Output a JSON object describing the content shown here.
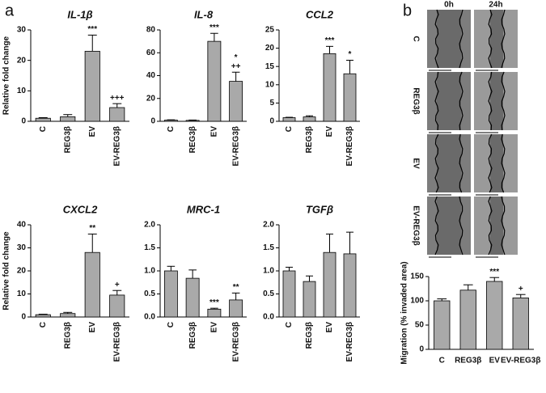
{
  "panel_labels": [
    "a",
    "b"
  ],
  "images": {
    "columns": [
      "0h",
      "24h"
    ],
    "rows": [
      "C",
      "REG3β",
      "EV",
      "EV-REG3β"
    ]
  },
  "chart_data": [
    {
      "type": "bar",
      "title": "IL-1β",
      "y_label": "Relative fold change",
      "categories": [
        "C",
        "REG3β",
        "EV",
        "EV-REG3β"
      ],
      "values": [
        1.0,
        1.5,
        23,
        4.5
      ],
      "errors": [
        0.2,
        0.7,
        5.3,
        1.3
      ],
      "annotations": [
        null,
        null,
        [
          "***"
        ],
        [
          "+++"
        ]
      ],
      "color": "#a9a9a9",
      "ylim": [
        0,
        30
      ],
      "yticks": [
        0,
        10,
        20,
        30
      ],
      "xtick_rotation": -90
    },
    {
      "type": "bar",
      "title": "IL-8",
      "categories": [
        "C",
        "REG3β",
        "EV",
        "EV-REG3β"
      ],
      "values": [
        1.0,
        0.8,
        70,
        35
      ],
      "errors": [
        0.3,
        0.3,
        7,
        8
      ],
      "annotations": [
        null,
        null,
        [
          "***"
        ],
        [
          "*",
          "++"
        ]
      ],
      "color": "#a9a9a9",
      "ylim": [
        0,
        80
      ],
      "yticks": [
        0,
        20,
        40,
        60,
        80
      ],
      "xtick_rotation": -90
    },
    {
      "type": "bar",
      "title": "CCL2",
      "categories": [
        "C",
        "REG3β",
        "EV",
        "EV-REG3β"
      ],
      "values": [
        1.0,
        1.2,
        18.5,
        13
      ],
      "errors": [
        0.1,
        0.3,
        2,
        3.7
      ],
      "annotations": [
        null,
        null,
        [
          "***"
        ],
        [
          "*"
        ]
      ],
      "color": "#a9a9a9",
      "ylim": [
        0,
        25
      ],
      "yticks": [
        0,
        5,
        10,
        15,
        20,
        25
      ],
      "xtick_rotation": -90
    },
    {
      "type": "bar",
      "title": "CXCL2",
      "y_label": "Relative fold change",
      "categories": [
        "C",
        "REG3β",
        "EV",
        "EV-REG3β"
      ],
      "values": [
        1.0,
        1.5,
        28,
        9.5
      ],
      "errors": [
        0.2,
        0.5,
        8,
        2
      ],
      "annotations": [
        null,
        null,
        [
          "**"
        ],
        [
          "+"
        ]
      ],
      "color": "#a9a9a9",
      "ylim": [
        0,
        40
      ],
      "yticks": [
        0,
        10,
        20,
        30,
        40
      ],
      "xtick_rotation": -90
    },
    {
      "type": "bar",
      "title": "MRC-1",
      "categories": [
        "C",
        "REG3β",
        "EV",
        "EV-REG3β"
      ],
      "values": [
        1.0,
        0.84,
        0.17,
        0.37
      ],
      "errors": [
        0.1,
        0.18,
        0.02,
        0.15
      ],
      "annotations": [
        null,
        null,
        [
          "***"
        ],
        [
          "**"
        ]
      ],
      "color": "#a9a9a9",
      "ylim": [
        0,
        2
      ],
      "yticks": [
        {
          "value": 0,
          "label": "0.0"
        },
        0.5,
        {
          "value": 1,
          "label": "1.0"
        },
        1.5,
        {
          "value": 2,
          "label": "2.0"
        }
      ],
      "xtick_rotation": -90
    },
    {
      "type": "bar",
      "title": "TGFβ",
      "categories": [
        "C",
        "REG3β",
        "EV",
        "EV-REG3β"
      ],
      "values": [
        1.0,
        0.77,
        1.4,
        1.37
      ],
      "errors": [
        0.08,
        0.12,
        0.4,
        0.47
      ],
      "color": "#a9a9a9",
      "ylim": [
        0,
        2
      ],
      "yticks": [
        {
          "value": 0,
          "label": "0.0"
        },
        0.5,
        {
          "value": 1,
          "label": "1.0"
        },
        1.5,
        {
          "value": 2,
          "label": "2.0"
        }
      ],
      "xtick_rotation": -90
    },
    {
      "type": "bar",
      "y_label": "Migration (% invaded area)",
      "categories": [
        "C",
        "REG3β",
        "EV",
        "EV-REG3β"
      ],
      "values": [
        100,
        122,
        140,
        106
      ],
      "errors": [
        4,
        11,
        8,
        7
      ],
      "annotations": [
        null,
        null,
        [
          "***"
        ],
        [
          "+"
        ]
      ],
      "color": "#a9a9a9",
      "ylim": [
        0,
        150
      ],
      "yticks": [
        0,
        50,
        100,
        150
      ],
      "xtick_rotation": 0
    }
  ]
}
